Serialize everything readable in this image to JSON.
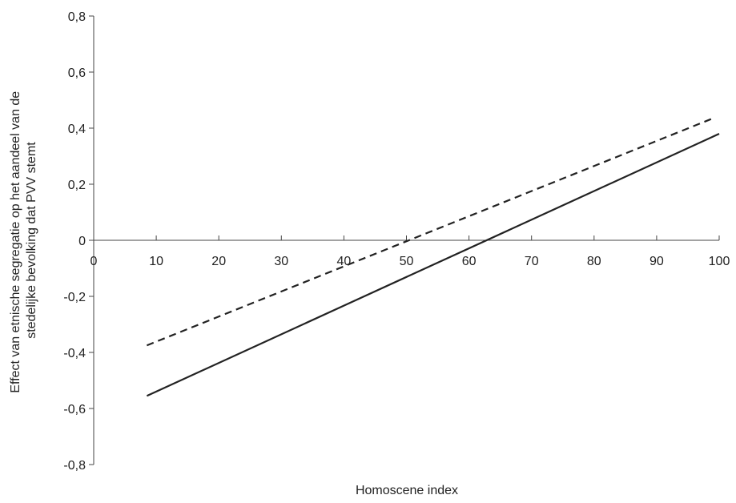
{
  "chart_data": {
    "type": "line",
    "xlabel": "Homoscene index",
    "ylabel_lines": [
      "Effect van etnische segregatie op het aandeel van de",
      "stedelijke bevolking dat PVV stemt"
    ],
    "xlim": [
      0,
      100
    ],
    "ylim": [
      -0.8,
      0.8
    ],
    "x_ticks": [
      {
        "value": 0,
        "label": "0"
      },
      {
        "value": 10,
        "label": "10"
      },
      {
        "value": 20,
        "label": "20"
      },
      {
        "value": 30,
        "label": "30"
      },
      {
        "value": 40,
        "label": "40"
      },
      {
        "value": 50,
        "label": "50"
      },
      {
        "value": 60,
        "label": "60"
      },
      {
        "value": 70,
        "label": "70"
      },
      {
        "value": 80,
        "label": "80"
      },
      {
        "value": 90,
        "label": "90"
      },
      {
        "value": 100,
        "label": "100"
      }
    ],
    "y_ticks": [
      {
        "value": 0.8,
        "label": "0,8"
      },
      {
        "value": 0.6,
        "label": "0,6"
      },
      {
        "value": 0.4,
        "label": "0,4"
      },
      {
        "value": 0.2,
        "label": "0,2"
      },
      {
        "value": 0,
        "label": "0"
      },
      {
        "value": -0.2,
        "label": "-0,2"
      },
      {
        "value": -0.4,
        "label": "-0,4"
      },
      {
        "value": -0.6,
        "label": "-0,6"
      },
      {
        "value": -0.8,
        "label": "-0,8"
      }
    ],
    "grid": false,
    "legend": "none",
    "series": [
      {
        "style": "dashed",
        "color": "#222222",
        "x": [
          8.5,
          99
        ],
        "y": [
          -0.375,
          0.435
        ]
      },
      {
        "style": "solid",
        "color": "#222222",
        "x": [
          8.5,
          100
        ],
        "y": [
          -0.555,
          0.38
        ]
      }
    ]
  }
}
